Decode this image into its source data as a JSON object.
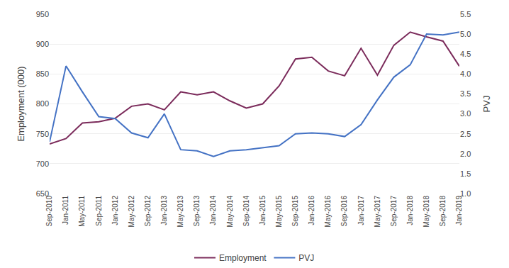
{
  "chart_data": {
    "type": "line",
    "ylabel": "Employment (000)",
    "y2label": "PVJ",
    "categories": [
      "Sep-2010",
      "Jan-2011",
      "May-2011",
      "Sep-2011",
      "Jan-2012",
      "May-2012",
      "Sep-2012",
      "Jan-2013",
      "May-2013",
      "Sep-2013",
      "Jan-2014",
      "May-2014",
      "Sep-2014",
      "Jan-2015",
      "May-2015",
      "Sep-2015",
      "Jan-2016",
      "May-2016",
      "Sep-2016",
      "Jan-2017",
      "May-2017",
      "Sep-2017",
      "Jan-2018",
      "May-2018",
      "Sep-2018",
      "Jan-2019"
    ],
    "series": [
      {
        "name": "Employment",
        "color": "#7B2B5B",
        "values": [
          733,
          742,
          768,
          770,
          776,
          796,
          800,
          790,
          820,
          815,
          820,
          805,
          793,
          800,
          830,
          875,
          878,
          855,
          847,
          893,
          848,
          898,
          920,
          912,
          905,
          863
        ]
      },
      {
        "name": "PVJ",
        "color": "#4472C4",
        "axis": "y2",
        "values": [
          2.3,
          4.2,
          3.55,
          2.93,
          2.88,
          2.52,
          2.4,
          3.0,
          2.1,
          2.07,
          1.93,
          2.07,
          2.1,
          2.15,
          2.2,
          2.5,
          2.52,
          2.5,
          2.43,
          2.73,
          3.35,
          3.92,
          4.23,
          5.0,
          4.98,
          5.05
        ]
      }
    ],
    "ylim": [
      650,
      950
    ],
    "yticks": [
      650,
      700,
      750,
      800,
      850,
      900,
      950
    ],
    "y2lim": [
      1.0,
      5.5
    ],
    "y2ticks": [
      {
        "value": 1.0,
        "label": "1.0"
      },
      1.5,
      {
        "value": 2.0,
        "label": "2.0"
      },
      2.5,
      {
        "value": 3.0,
        "label": "3.0"
      },
      3.5,
      {
        "value": 4.0,
        "label": "4.0"
      },
      4.5,
      {
        "value": 5.0,
        "label": "5.0"
      },
      5.5
    ],
    "grid": true,
    "legend": "bottom"
  }
}
